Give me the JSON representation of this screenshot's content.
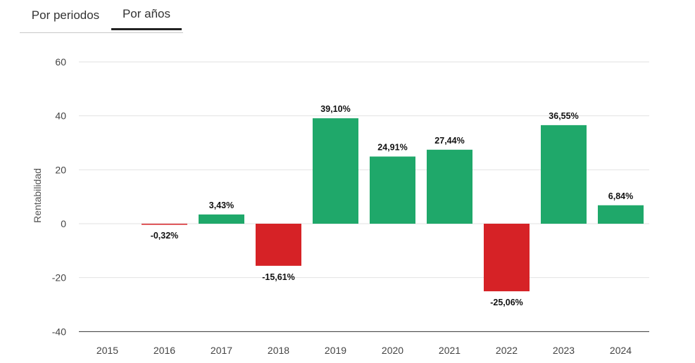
{
  "tabs": [
    {
      "label": "Por periodos",
      "active": false
    },
    {
      "label": "Por años",
      "active": true
    }
  ],
  "colors": {
    "positive": "#1fa86a",
    "negative": "#d62226",
    "grid": "#e2e2e2",
    "axis": "#333333"
  },
  "chart_data": {
    "type": "bar",
    "categories": [
      "2015",
      "2016",
      "2017",
      "2018",
      "2019",
      "2020",
      "2021",
      "2022",
      "2023",
      "2024"
    ],
    "values": [
      null,
      -0.32,
      3.43,
      -15.61,
      39.1,
      24.91,
      27.44,
      -25.06,
      36.55,
      6.84
    ],
    "data_labels": [
      "",
      "-0,32%",
      "3,43%",
      "-15,61%",
      "39,10%",
      "24,91%",
      "27,44%",
      "-25,06%",
      "36,55%",
      "6,84%"
    ],
    "ylabel": "Rentabilidad",
    "xlabel": "",
    "title": "",
    "ylim": [
      -40,
      60
    ],
    "yticks": [
      -40,
      -20,
      0,
      20,
      40,
      60
    ],
    "ytick_labels": [
      "-40",
      "-20",
      "0",
      "20",
      "40",
      "60"
    ],
    "grid": true,
    "legend": false
  }
}
